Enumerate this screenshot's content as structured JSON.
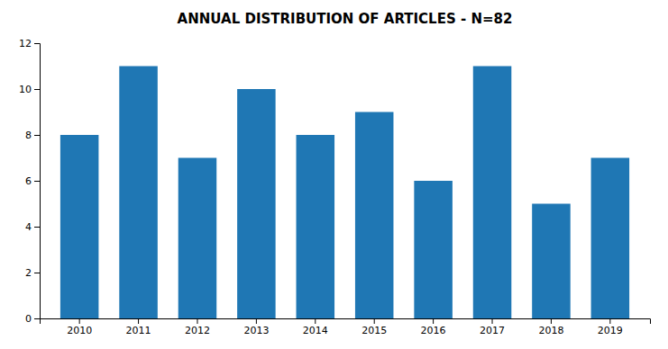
{
  "chart_data": {
    "type": "bar",
    "title": "ANNUAL DISTRIBUTION OF ARTICLES - N=82",
    "categories": [
      "2010",
      "2011",
      "2012",
      "2013",
      "2014",
      "2015",
      "2016",
      "2017",
      "2018",
      "2019"
    ],
    "values": [
      8,
      11,
      7,
      10,
      8,
      9,
      6,
      11,
      5,
      7
    ],
    "ylim": [
      0,
      12
    ],
    "yticks": [
      0,
      2,
      4,
      6,
      8,
      10,
      12
    ],
    "grid": false
  }
}
